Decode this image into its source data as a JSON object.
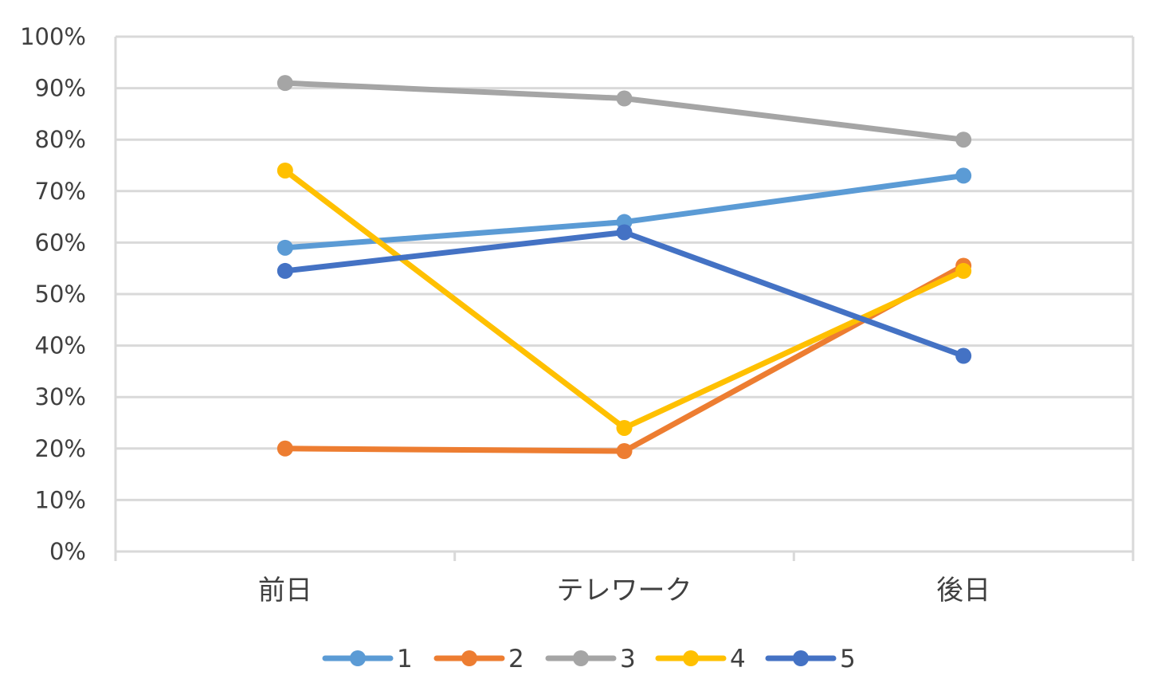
{
  "chart_data": {
    "type": "line",
    "title": "",
    "xlabel": "",
    "ylabel": "",
    "categories": [
      "前日",
      "テレワーク",
      "後日"
    ],
    "ylim": [
      0,
      100
    ],
    "y_ticks": [
      "0%",
      "10%",
      "20%",
      "30%",
      "40%",
      "50%",
      "60%",
      "70%",
      "80%",
      "90%",
      "100%"
    ],
    "grid": true,
    "legend_position": "bottom",
    "series": [
      {
        "name": "1",
        "values": [
          59,
          64,
          73
        ],
        "color": "#5b9bd5"
      },
      {
        "name": "2",
        "values": [
          20,
          19.5,
          55.5
        ],
        "color": "#ed7d31"
      },
      {
        "name": "3",
        "values": [
          91,
          88,
          80
        ],
        "color": "#a5a5a5"
      },
      {
        "name": "4",
        "values": [
          74,
          24,
          54.5
        ],
        "color": "#ffc000"
      },
      {
        "name": "5",
        "values": [
          54.5,
          62,
          38
        ],
        "color": "#4472c4"
      }
    ]
  }
}
